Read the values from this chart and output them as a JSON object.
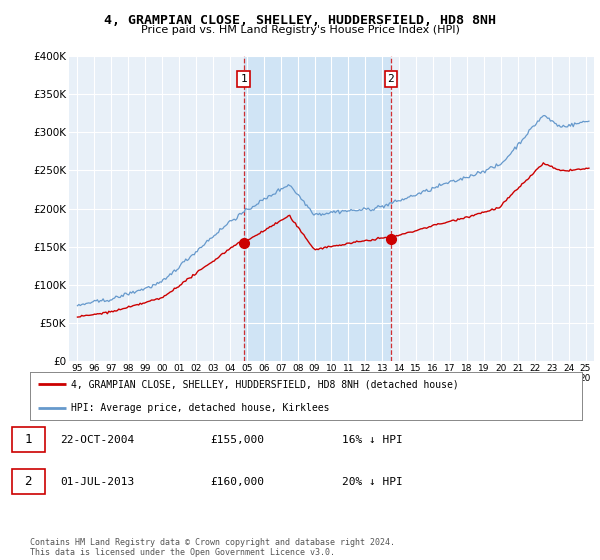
{
  "title": "4, GRAMPIAN CLOSE, SHELLEY, HUDDERSFIELD, HD8 8NH",
  "subtitle": "Price paid vs. HM Land Registry's House Price Index (HPI)",
  "ylabel_ticks": [
    "£0",
    "£50K",
    "£100K",
    "£150K",
    "£200K",
    "£250K",
    "£300K",
    "£350K",
    "£400K"
  ],
  "ytick_vals": [
    0,
    50000,
    100000,
    150000,
    200000,
    250000,
    300000,
    350000,
    400000
  ],
  "ylim": [
    0,
    400000
  ],
  "xlim_start": 1994.5,
  "xlim_end": 2025.5,
  "sale1_x": 2004.81,
  "sale1_y": 155000,
  "sale2_x": 2013.5,
  "sale2_y": 160000,
  "sale1_date": "22-OCT-2004",
  "sale1_price": "£155,000",
  "sale1_hpi": "16% ↓ HPI",
  "sale2_date": "01-JUL-2013",
  "sale2_price": "£160,000",
  "sale2_hpi": "20% ↓ HPI",
  "legend_line1": "4, GRAMPIAN CLOSE, SHELLEY, HUDDERSFIELD, HD8 8NH (detached house)",
  "legend_line2": "HPI: Average price, detached house, Kirklees",
  "footer": "Contains HM Land Registry data © Crown copyright and database right 2024.\nThis data is licensed under the Open Government Licence v3.0.",
  "line_color_red": "#cc0000",
  "line_color_blue": "#6699cc",
  "bg_plot": "#e8f0f8",
  "bg_shade": "#d0e4f5",
  "bg_fig": "#ffffff",
  "grid_color": "#ffffff"
}
